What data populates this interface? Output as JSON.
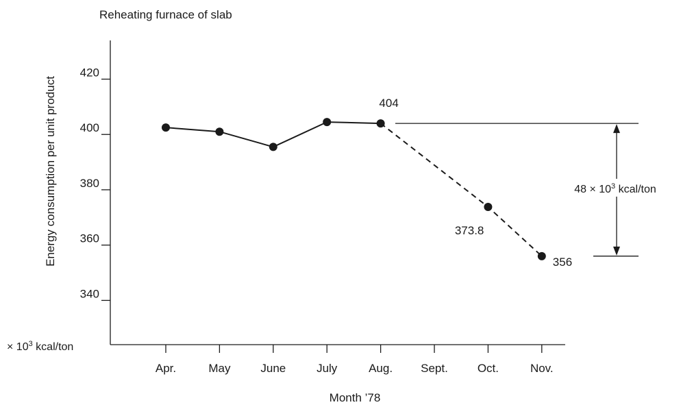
{
  "chart_data": {
    "type": "line",
    "title": "Reheating furnace of slab",
    "xlabel": "Month ’78",
    "ylabel": "Energy consumption per unit product",
    "unit_label": {
      "prefix": "× 10",
      "exponent": "3",
      "suffix": " kcal/ton"
    },
    "categories": [
      "Apr.",
      "May",
      "June",
      "July",
      "Aug.",
      "Sept.",
      "Oct.",
      "Nov."
    ],
    "yticks": [
      340,
      360,
      380,
      400,
      420
    ],
    "ylim": [
      324,
      434
    ],
    "grid": false,
    "series": [
      {
        "style": "solid",
        "points": [
          {
            "x": "Apr.",
            "y": 402.5
          },
          {
            "x": "May",
            "y": 401
          },
          {
            "x": "June",
            "y": 395.5
          },
          {
            "x": "July",
            "y": 404.5
          },
          {
            "x": "Aug.",
            "y": 404
          }
        ]
      },
      {
        "style": "dashed",
        "points": [
          {
            "x": "Aug.",
            "y": 404
          },
          {
            "x": "Oct.",
            "y": 373.8
          },
          {
            "x": "Nov.",
            "y": 356
          }
        ]
      }
    ],
    "data_labels": [
      {
        "x": "Aug.",
        "y": 404,
        "text": "404"
      },
      {
        "x": "Oct.",
        "y": 373.8,
        "text": "373.8"
      },
      {
        "x": "Nov.",
        "y": 356,
        "text": "356"
      }
    ],
    "annotation": {
      "from": 404,
      "to": 356,
      "prefix": "48 × 10",
      "exponent": "3",
      "suffix": " kcal/ton"
    }
  },
  "colors": {
    "ink": "#1a1a1a",
    "background": "#ffffff"
  }
}
